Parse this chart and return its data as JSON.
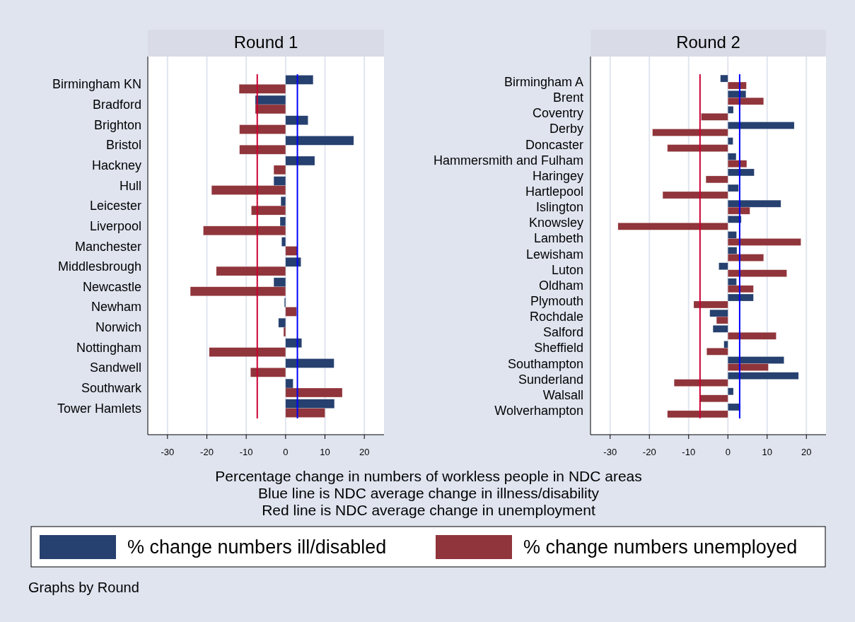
{
  "chart_data": [
    {
      "type": "bar",
      "orientation": "horizontal",
      "title": "Round 1",
      "categories": [
        "Birmingham KN",
        "Bradford",
        "Brighton",
        "Bristol",
        "Hackney",
        "Hull",
        "Leicester",
        "Liverpool",
        "Manchester",
        "Middlesbrough",
        "Newcastle",
        "Newham",
        "Norwich",
        "Nottingham",
        "Sandwell",
        "Southwark",
        "Tower Hamlets"
      ],
      "series": [
        {
          "name": "% change numbers ill/disabled",
          "color": "#26406f",
          "values": [
            7.0,
            -7.7,
            5.7,
            17.3,
            7.4,
            -3.0,
            -1.2,
            -1.4,
            -1.0,
            3.9,
            -3.0,
            -0.3,
            -1.8,
            4.1,
            12.3,
            1.9,
            12.4
          ]
        },
        {
          "name": "% change numbers unemployed",
          "color": "#90353b",
          "values": [
            -11.8,
            -7.7,
            -11.7,
            -11.7,
            -3.0,
            -18.8,
            -8.7,
            -20.9,
            3.0,
            -17.6,
            -24.2,
            2.8,
            -0.5,
            -19.4,
            -8.9,
            14.4,
            10.0
          ]
        }
      ],
      "xlim": [
        -35,
        25
      ],
      "xticks": [
        -30,
        -20,
        -10,
        0,
        10,
        20
      ],
      "grid": "x",
      "legend": "bottom",
      "ref_lines": [
        {
          "axis": "x",
          "value": 3.0,
          "color": "#0000ff"
        },
        {
          "axis": "x",
          "value": -7.2,
          "color": "#cc0033"
        }
      ],
      "annotations": [
        "Percentage change in numbers of workless people in NDC areas",
        "Blue line is NDC average change in illness/disability",
        "Red line is NDC average change in unemployment",
        "Graphs by Round"
      ]
    },
    {
      "type": "bar",
      "orientation": "horizontal",
      "title": "Round 2",
      "categories": [
        "Birmingham A",
        "Brent",
        "Coventry",
        "Derby",
        "Doncaster",
        "Hammersmith and Fulham",
        "Haringey",
        "Hartlepool",
        "Islington",
        "Knowsley",
        "Lambeth",
        "Lewisham",
        "Luton",
        "Oldham",
        "Plymouth",
        "Rochdale",
        "Salford",
        "Sheffield",
        "Southampton",
        "Sunderland",
        "Walsall",
        "Wolverhampton"
      ],
      "series": [
        {
          "color": "#26406f",
          "values": [
            -1.9,
            4.6,
            1.4,
            16.9,
            1.3,
            2.1,
            6.7,
            2.7,
            13.5,
            3.4,
            2.2,
            2.3,
            -2.3,
            2.2,
            6.5,
            -4.6,
            -3.8,
            -1.0,
            14.3,
            18.0,
            1.4,
            3.2
          ]
        },
        {
          "color": "#90353b",
          "values": [
            4.7,
            9.1,
            -6.8,
            -19.2,
            -15.4,
            4.8,
            -5.6,
            -16.6,
            5.6,
            -28.0,
            18.6,
            9.1,
            15.0,
            6.5,
            -8.7,
            -2.9,
            12.3,
            -5.4,
            10.3,
            -13.7,
            -7.1,
            -15.4
          ]
        }
      ],
      "xlim": [
        -35,
        25
      ],
      "xticks": [
        -30,
        -20,
        -10,
        0,
        10,
        20
      ],
      "grid": "x",
      "ref_lines": [
        {
          "axis": "x",
          "value": 3.0,
          "color": "#0000ff"
        },
        {
          "axis": "x",
          "value": -7.1,
          "color": "#cc0033"
        }
      ]
    }
  ]
}
